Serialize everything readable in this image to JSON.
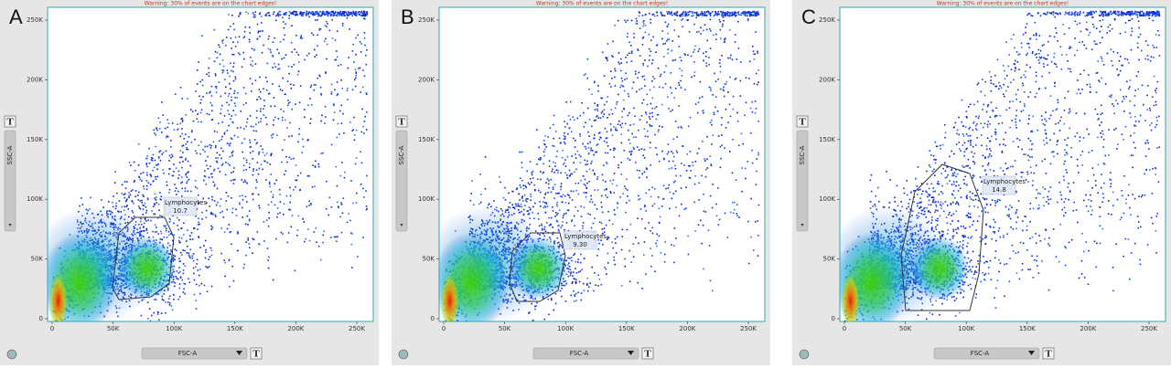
{
  "panels": [
    {
      "letter": "A",
      "warning": "Warning: 30% of events are on the chart edges!",
      "y_axis": "SSC-A",
      "x_axis": "FSC-A",
      "gate": {
        "name": "Lymphocytes",
        "percent": "10.7"
      }
    },
    {
      "letter": "B",
      "warning": "Warning: 30% of events are on the chart edges!",
      "y_axis": "SSC-A",
      "x_axis": "FSC-A",
      "gate": {
        "name": "Lymphocytes",
        "percent": "9.30"
      }
    },
    {
      "letter": "C",
      "warning": "Warning: 30% of events are on the chart edges!",
      "y_axis": "SSC-A",
      "x_axis": "FSC-A",
      "gate": {
        "name": "Lymphocytes",
        "percent": "14.8"
      }
    }
  ],
  "y_ticks": [
    "0",
    "50K",
    "100K",
    "150K",
    "200K",
    "250K"
  ],
  "x_ticks": [
    "0",
    "50K",
    "100K",
    "150K",
    "200K",
    "250K"
  ],
  "text_tool": "T"
}
